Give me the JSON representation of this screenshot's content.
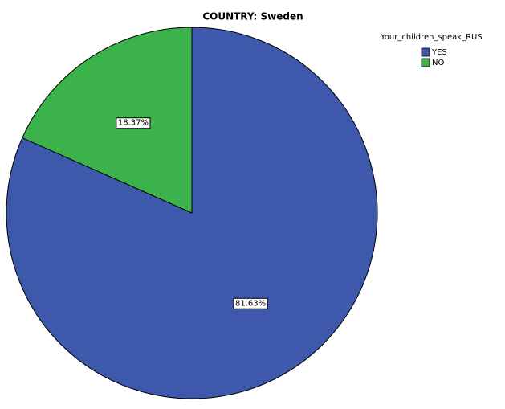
{
  "chart_data": {
    "type": "pie",
    "title": "COUNTRY: Sweden",
    "legend_title": "Your_children_speak_RUS",
    "categories": [
      "YES",
      "NO"
    ],
    "values": [
      81.63,
      18.37
    ],
    "value_labels": [
      "81.63%",
      "18.37%"
    ],
    "colors": [
      "#3e58ac",
      "#3cb34a"
    ]
  }
}
